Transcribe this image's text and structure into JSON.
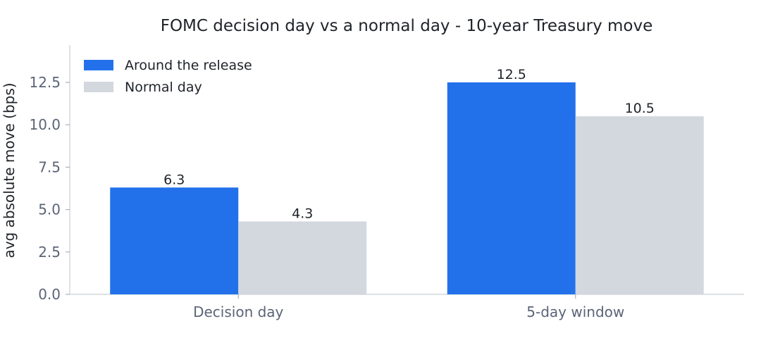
{
  "chart_data": {
    "type": "bar",
    "title": "FOMC decision day vs a normal day - 10-year Treasury move",
    "xlabel": "",
    "ylabel": "avg absolute move (bps)",
    "categories": [
      "Decision day",
      "5-day window"
    ],
    "series": [
      {
        "name": "Around the release",
        "values": [
          6.3,
          12.5
        ],
        "value_labels": [
          "6.3",
          "12.5"
        ],
        "color": "#2271ea"
      },
      {
        "name": "Normal day",
        "values": [
          4.3,
          10.5
        ],
        "value_labels": [
          "4.3",
          "10.5"
        ],
        "color": "#d3d8df"
      }
    ],
    "ylim": [
      0,
      14.7
    ],
    "yticks": [
      0.0,
      2.5,
      5.0,
      7.5,
      10.0,
      12.5
    ],
    "ytick_labels": [
      "0.0",
      "2.5",
      "5.0",
      "7.5",
      "10.0",
      "12.5"
    ],
    "grid": false,
    "legend_position": "top-left"
  }
}
